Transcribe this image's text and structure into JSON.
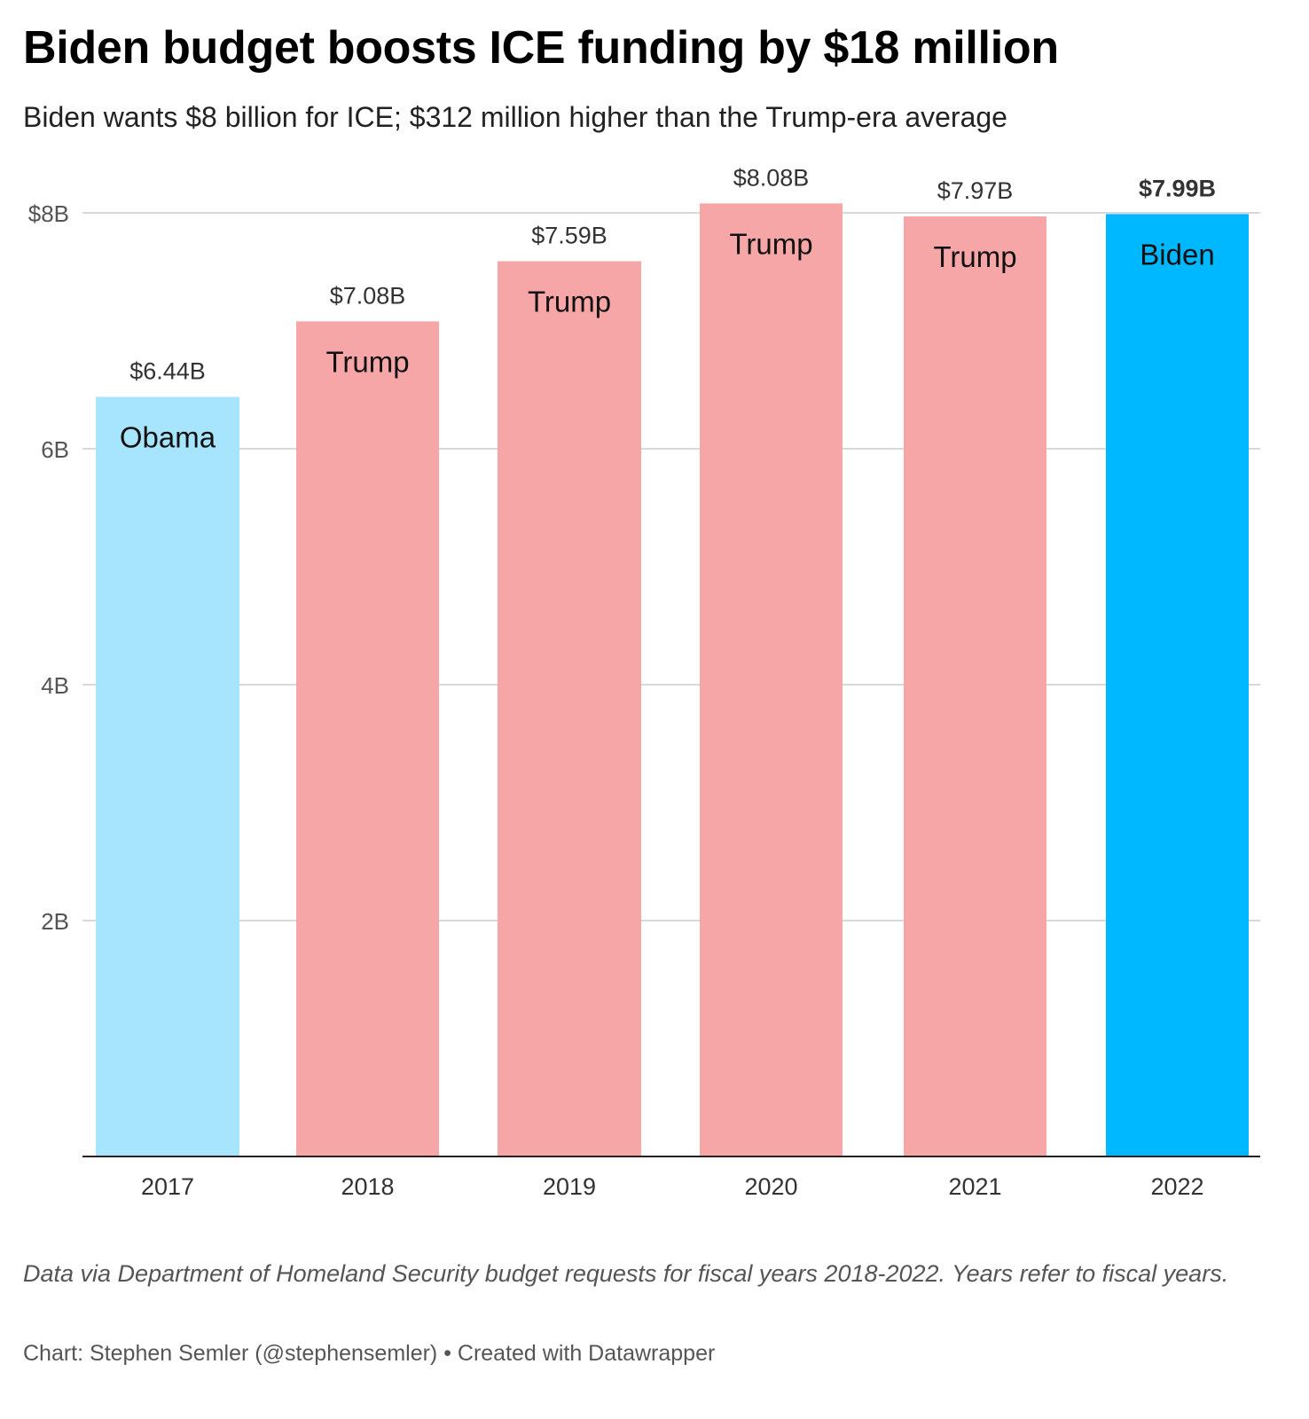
{
  "title": "Biden budget boosts ICE funding by $18 million",
  "subtitle": "Biden wants $8 billion for ICE; $312 million higher than the Trump-era average",
  "chart_data": {
    "type": "bar",
    "categories": [
      "2017",
      "2018",
      "2019",
      "2020",
      "2021",
      "2022"
    ],
    "values": [
      6.44,
      7.08,
      7.59,
      8.08,
      7.97,
      7.99
    ],
    "value_labels": [
      "$6.44B",
      "$7.08B",
      "$7.59B",
      "$8.08B",
      "$7.97B",
      "$7.99B"
    ],
    "bar_labels": [
      "Obama",
      "Trump",
      "Trump",
      "Trump",
      "Trump",
      "Biden"
    ],
    "bar_colors": [
      "#a6e5fd",
      "#f7a6a8",
      "#f7a6a8",
      "#f7a6a8",
      "#f7a6a8",
      "#00b8ff"
    ],
    "highlight_index": 5,
    "yticks": [
      {
        "value": 2,
        "label": "2B"
      },
      {
        "value": 4,
        "label": "4B"
      },
      {
        "value": 6,
        "label": "6B"
      },
      {
        "value": 8,
        "label": "$8B"
      }
    ],
    "ylim": [
      0,
      8
    ],
    "grid": true
  },
  "notes": "Data via Department of Homeland Security budget requests for fiscal years 2018-2022. Years refer to fiscal years.",
  "credit": "Chart: Stephen Semler (@stephensemler) • Created with Datawrapper"
}
